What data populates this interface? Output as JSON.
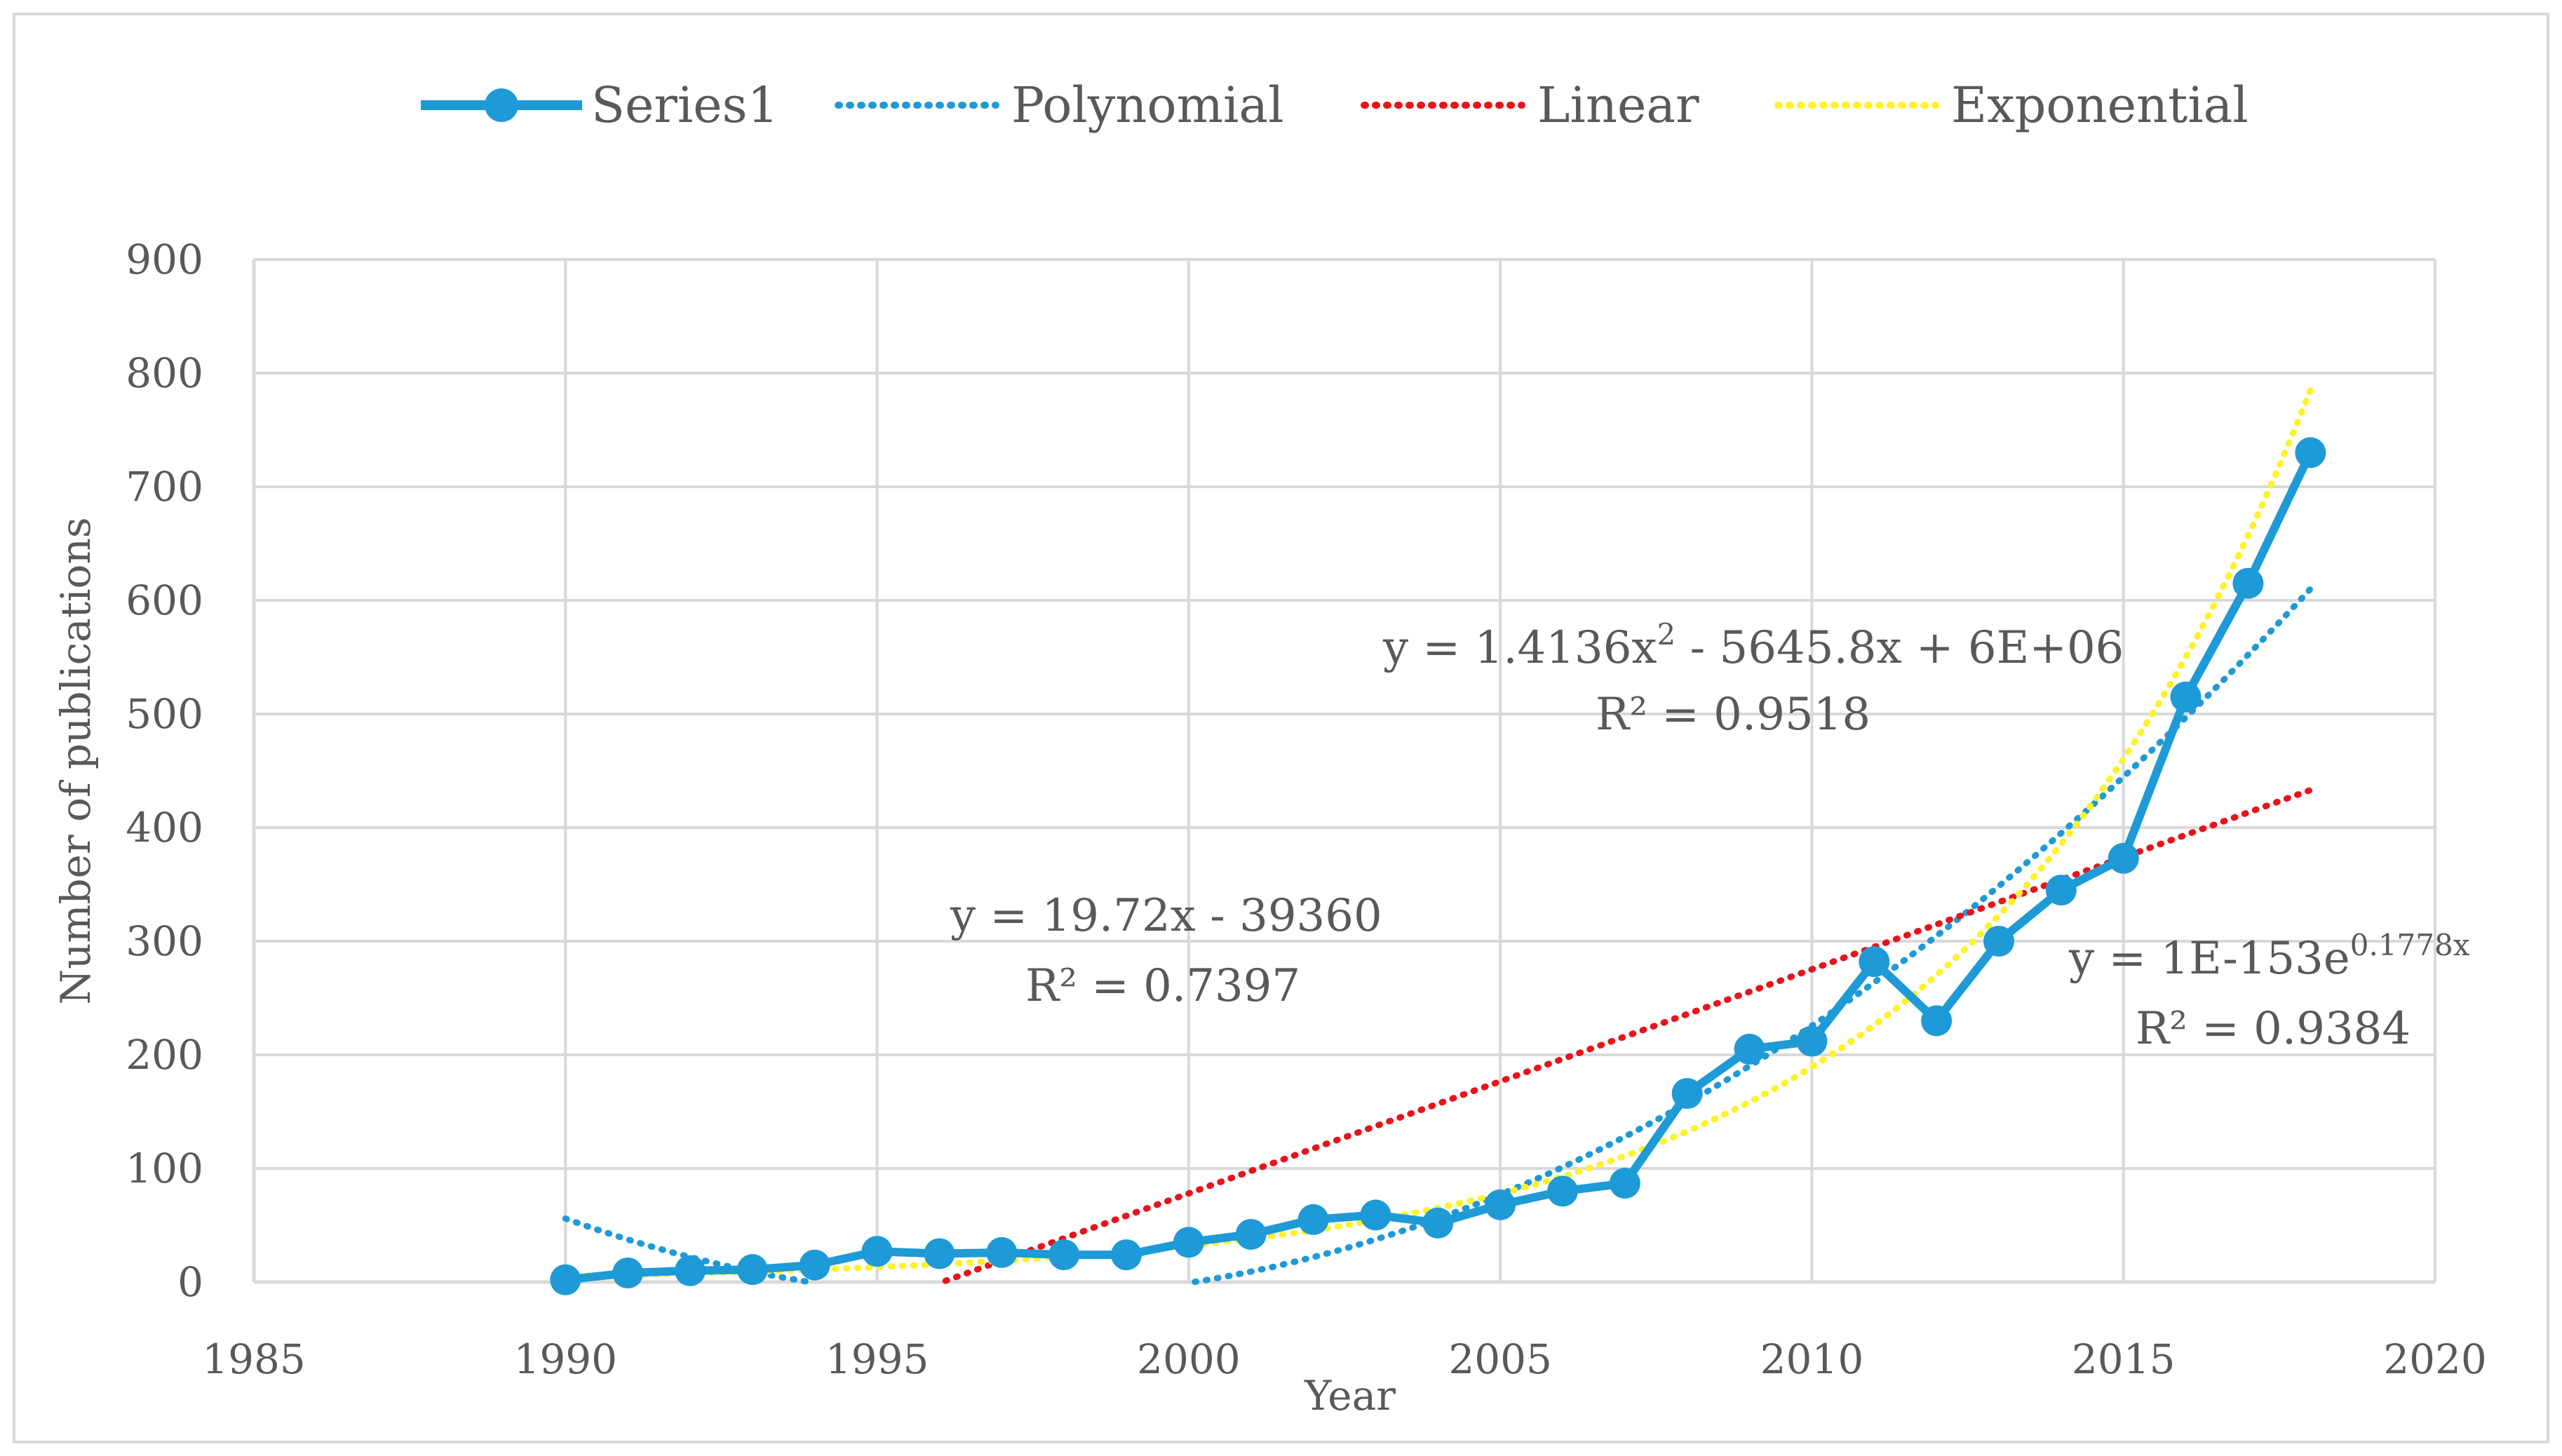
{
  "chart_data": {
    "type": "scatter",
    "xlabel": "Year",
    "ylabel": "Number of publications",
    "xlim": [
      1985,
      2020
    ],
    "ylim": [
      0,
      900
    ],
    "x_ticks": [
      1985,
      1990,
      1995,
      2000,
      2005,
      2010,
      2015,
      2020
    ],
    "y_ticks": [
      0,
      100,
      200,
      300,
      400,
      500,
      600,
      700,
      800,
      900
    ],
    "grid": true,
    "legend_position": "top",
    "series": [
      {
        "name": "Series1",
        "style": "line-with-markers",
        "color": "#1E9AD6",
        "x": [
          1990,
          1991,
          1992,
          1993,
          1994,
          1995,
          1996,
          1997,
          1998,
          1999,
          2000,
          2001,
          2002,
          2003,
          2004,
          2005,
          2006,
          2007,
          2008,
          2009,
          2010,
          2011,
          2012,
          2013,
          2014,
          2015,
          2016,
          2017,
          2018
        ],
        "y": [
          2,
          8,
          10,
          11,
          15,
          27,
          25,
          26,
          24,
          24,
          35,
          42,
          55,
          59,
          52,
          68,
          80,
          87,
          166,
          205,
          212,
          282,
          230,
          300,
          345,
          373,
          515,
          615,
          730
        ]
      }
    ],
    "trendlines": [
      {
        "name": "Polynomial",
        "type": "polynomial",
        "color": "#1E9AD6",
        "equation": "y = 1.4136x² - 5645.8x + 6E+06",
        "equation_main": "y = 1.4136x",
        "equation_sup": "2",
        "equation_rest": " - 5645.8x + 6E+06",
        "r2_label": "R² = 0.9518",
        "r2": 0.9518,
        "vertex_year": 1997.0,
        "curvature": 1.4136,
        "value_at_2018": 610,
        "x_range": [
          1990,
          2018
        ]
      },
      {
        "name": "Linear",
        "type": "linear",
        "color": "#E8141B",
        "equation": "y = 19.72x - 39360",
        "r2_label": "R² = 0.7397",
        "r2": 0.7397,
        "slope": 19.72,
        "value_at_2018": 433,
        "x_range": [
          1990,
          2018
        ]
      },
      {
        "name": "Exponential",
        "type": "exponential",
        "color": "#FFF22A",
        "equation": "y = 1E-153e^0.1778x",
        "equation_main": "y = 1E-153e",
        "equation_sup": "0.1778x",
        "r2_label": "R² = 0.9384",
        "r2": 0.9384,
        "rate": 0.1778,
        "value_at_2018": 785,
        "x_range": [
          1990,
          2018
        ]
      }
    ]
  }
}
